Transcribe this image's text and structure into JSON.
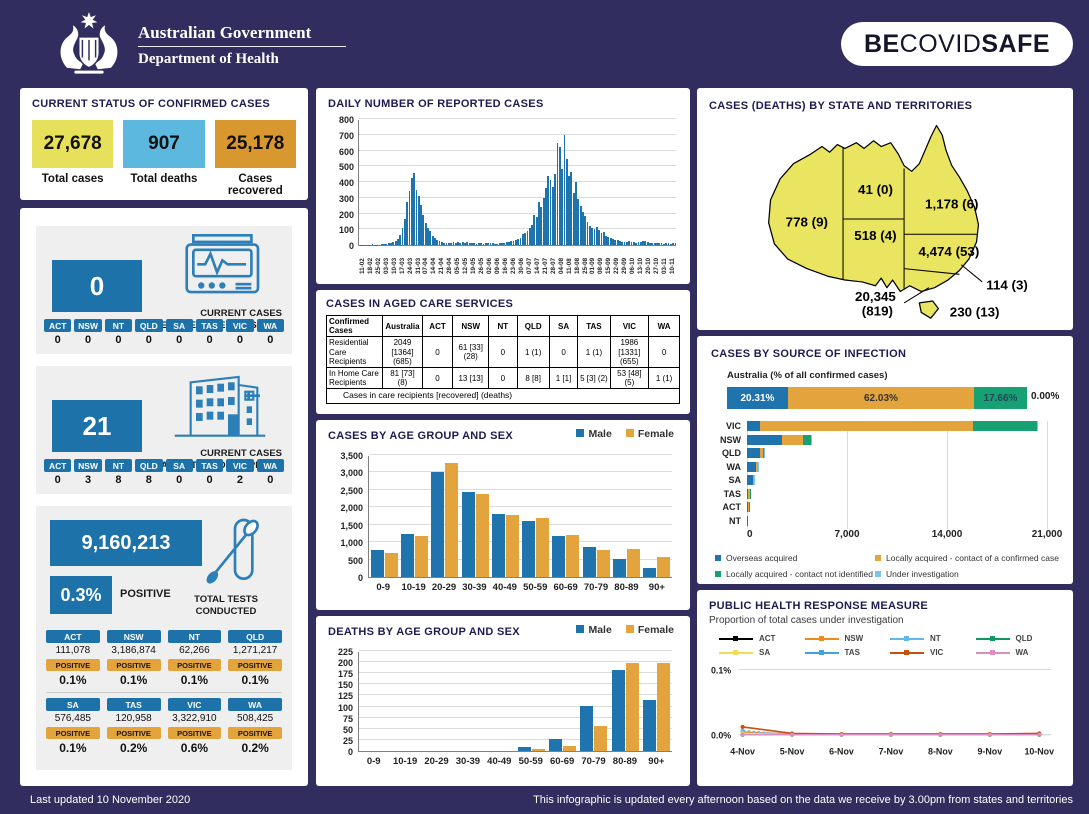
{
  "colors": {
    "navy_bg": "#312d5f",
    "panel_gray": "#efefef",
    "chip_blue": "#1d72aa",
    "chart_blue": "#1f74ad",
    "chart_orange": "#e3a33d",
    "status_yellow": "#e7e05a",
    "status_blue": "#5cb8de",
    "status_orange": "#d8982f",
    "green": "#17a172",
    "under_investigation_blue": "#7cc5e8",
    "map_yellow": "#eae560",
    "icon_blue": "#2d7fb8"
  },
  "header": {
    "gov_line1": "Australian Government",
    "gov_line2": "Department of Health",
    "badge_be": "BE ",
    "badge_covid": "COVID",
    "badge_safe": "SAFE"
  },
  "status": {
    "title": "CURRENT STATUS OF CONFIRMED CASES",
    "cards": [
      {
        "value": "27,678",
        "label": "Total cases",
        "color": "#e7e05a"
      },
      {
        "value": "907",
        "label": "Total deaths",
        "color": "#5cb8de"
      },
      {
        "value": "25,178",
        "label": "Cases recovered",
        "color": "#d8982f"
      }
    ]
  },
  "icu": {
    "value": "0",
    "label1": "CURRENT CASES",
    "label2": "INTENSIVE CARE UNITS (ICU)",
    "states": [
      {
        "code": "ACT",
        "value": "0"
      },
      {
        "code": "NSW",
        "value": "0"
      },
      {
        "code": "NT",
        "value": "0"
      },
      {
        "code": "QLD",
        "value": "0"
      },
      {
        "code": "SA",
        "value": "0"
      },
      {
        "code": "TAS",
        "value": "0"
      },
      {
        "code": "VIC",
        "value": "0"
      },
      {
        "code": "WA",
        "value": "0"
      }
    ]
  },
  "hospital": {
    "value": "21",
    "label1": "CURRENT CASES",
    "label2": "ADMITTED TO HOSPITALS",
    "states": [
      {
        "code": "ACT",
        "value": "0"
      },
      {
        "code": "NSW",
        "value": "3"
      },
      {
        "code": "NT",
        "value": "8"
      },
      {
        "code": "QLD",
        "value": "8"
      },
      {
        "code": "SA",
        "value": "0"
      },
      {
        "code": "TAS",
        "value": "0"
      },
      {
        "code": "VIC",
        "value": "2"
      },
      {
        "code": "WA",
        "value": "0"
      }
    ]
  },
  "tests": {
    "total": "9,160,213",
    "rate": "0.3%",
    "rate_label": "POSITIVE",
    "label1": "TOTAL TESTS",
    "label2": "CONDUCTED",
    "positive_chip": "POSITIVE",
    "states": [
      {
        "code": "ACT",
        "tests": "111,078",
        "positive": "0.1%"
      },
      {
        "code": "NSW",
        "tests": "3,186,874",
        "positive": "0.1%"
      },
      {
        "code": "NT",
        "tests": "62,266",
        "positive": "0.1%"
      },
      {
        "code": "QLD",
        "tests": "1,271,217",
        "positive": "0.1%"
      },
      {
        "code": "SA",
        "tests": "576,485",
        "positive": "0.1%"
      },
      {
        "code": "TAS",
        "tests": "120,958",
        "positive": "0.2%"
      },
      {
        "code": "VIC",
        "tests": "3,322,910",
        "positive": "0.6%"
      },
      {
        "code": "WA",
        "tests": "508,425",
        "positive": "0.2%"
      }
    ]
  },
  "aged_care": {
    "title": "CASES IN AGED CARE SERVICES",
    "headers": [
      "Confirmed Cases",
      "Australia",
      "ACT",
      "NSW",
      "NT",
      "QLD",
      "SA",
      "TAS",
      "VIC",
      "WA"
    ],
    "rows": [
      {
        "label": "Residential Care Recipients",
        "values": [
          "2049 [1364] (685)",
          "0",
          "61 [33] (28)",
          "0",
          "1 (1)",
          "0",
          "1 (1)",
          "1986 [1331] (655)",
          "0"
        ]
      },
      {
        "label": "In Home Care Recipients",
        "values": [
          "81 [73] (8)",
          "0",
          "13 [13]",
          "0",
          "8 [8]",
          "1 [1]",
          "5 [3] (2)",
          "53 [48] (5)",
          "1 (1)"
        ]
      }
    ],
    "footnote": "Cases in care recipients [recovered] (deaths)"
  },
  "map": {
    "title": "CASES (DEATHS) BY STATE AND TERRITORIES",
    "wa": "778 (9)",
    "nt": "41 (0)",
    "qld": "1,178 (6)",
    "sa": "518 (4)",
    "nsw": "4,474 (53)",
    "act": "114 (3)",
    "vic_line1": "20,345",
    "vic_line2": "(819)",
    "tas": "230 (13)"
  },
  "footer": {
    "left": "Last updated 10 November 2020",
    "right": "This infographic is updated every afternoon based on the data we receive by 3.00pm from states and territories"
  },
  "chart_data": [
    {
      "id": "daily_cases",
      "type": "bar",
      "title": "DAILY NUMBER OF REPORTED CASES",
      "ylim": [
        0,
        800
      ],
      "yticks": [
        0,
        100,
        200,
        300,
        400,
        500,
        600,
        700,
        800
      ],
      "x_tick_labels": [
        "11-02",
        "18-02",
        "25-02",
        "03-03",
        "10-03",
        "17-03",
        "24-03",
        "31-03",
        "07-04",
        "14-04",
        "21-04",
        "28-04",
        "05-05",
        "12-05",
        "19-05",
        "26-05",
        "02-06",
        "09-06",
        "16-06",
        "23-06",
        "30-06",
        "07-07",
        "14-07",
        "21-07",
        "28-07",
        "04-08",
        "11-08",
        "18-08",
        "25-08",
        "01-09",
        "08-09",
        "15-09",
        "22-09",
        "29-09",
        "06-10",
        "13-10",
        "20-10",
        "27-10",
        "03-11",
        "10-11"
      ],
      "values": [
        3,
        1,
        0,
        2,
        0,
        5,
        2,
        1,
        3,
        4,
        6,
        8,
        10,
        12,
        18,
        25,
        40,
        65,
        110,
        165,
        270,
        340,
        425,
        460,
        350,
        310,
        255,
        190,
        140,
        105,
        90,
        55,
        45,
        35,
        28,
        18,
        12,
        15,
        10,
        14,
        18,
        12,
        20,
        15,
        18,
        14,
        20,
        12,
        10,
        12,
        8,
        10,
        12,
        8,
        12,
        14,
        10,
        12,
        8,
        6,
        12,
        10,
        14,
        18,
        22,
        28,
        25,
        32,
        38,
        45,
        70,
        75,
        90,
        105,
        130,
        190,
        175,
        270,
        240,
        300,
        360,
        440,
        410,
        370,
        450,
        650,
        625,
        480,
        698,
        545,
        440,
        465,
        330,
        400,
        290,
        250,
        210,
        185,
        145,
        120,
        110,
        100,
        115,
        95,
        75,
        85,
        60,
        50,
        45,
        40,
        35,
        30,
        28,
        22,
        20,
        18,
        25,
        20,
        18,
        15,
        22,
        18,
        28,
        25,
        18,
        12,
        15,
        10,
        12,
        14,
        10,
        8,
        10,
        12,
        8,
        10,
        12
      ],
      "bar_color": "#1f74ad"
    },
    {
      "id": "cases_by_age_sex",
      "type": "bar",
      "title": "CASES BY AGE GROUP AND SEX",
      "categories": [
        "0-9",
        "10-19",
        "20-29",
        "30-39",
        "40-49",
        "50-59",
        "60-69",
        "70-79",
        "80-89",
        "90+"
      ],
      "series": [
        {
          "name": "Male",
          "color": "#1f74ad",
          "values": [
            780,
            1220,
            3000,
            2440,
            1800,
            1620,
            1170,
            860,
            520,
            260
          ]
        },
        {
          "name": "Female",
          "color": "#e3a33d",
          "values": [
            700,
            1170,
            3280,
            2390,
            1770,
            1690,
            1200,
            780,
            810,
            570
          ]
        }
      ],
      "ylim": [
        0,
        3500
      ],
      "yticks": [
        0,
        500,
        1000,
        1500,
        2000,
        2500,
        3000,
        3500
      ],
      "ytick_labels": [
        "0",
        "500",
        "1,000",
        "1,500",
        "2,000",
        "2,500",
        "3,000",
        "3,500"
      ],
      "legend_position": "top-right"
    },
    {
      "id": "deaths_by_age_sex",
      "type": "bar",
      "title": "DEATHS BY AGE GROUP AND SEX",
      "categories": [
        "0-9",
        "10-19",
        "20-29",
        "30-39",
        "40-49",
        "50-59",
        "60-69",
        "70-79",
        "80-89",
        "90+"
      ],
      "series": [
        {
          "name": "Male",
          "color": "#1f74ad",
          "values": [
            0,
            0,
            0,
            0,
            0,
            10,
            26,
            101,
            183,
            114
          ]
        },
        {
          "name": "Female",
          "color": "#e3a33d",
          "values": [
            0,
            0,
            0,
            0,
            0,
            5,
            12,
            57,
            197,
            199
          ]
        }
      ],
      "ylim": [
        0,
        225
      ],
      "yticks": [
        0,
        25,
        50,
        75,
        100,
        125,
        150,
        175,
        200,
        225
      ],
      "ytick_labels": [
        "0",
        "25",
        "50",
        "75",
        "100",
        "125",
        "150",
        "175",
        "200",
        "225"
      ],
      "legend_position": "top-right"
    },
    {
      "id": "source_of_infection",
      "type": "stacked-barh",
      "title": "CASES BY SOURCE OF INFECTION",
      "australia_label": "Australia (% of all confirmed cases)",
      "australia_segments": [
        {
          "label": "20.31%",
          "value": 20.31,
          "color": "#1f74ad",
          "text": "#ffffff"
        },
        {
          "label": "62.03%",
          "value": 62.03,
          "color": "#e3a33d",
          "text": "#333333"
        },
        {
          "label": "17.66%",
          "value": 17.66,
          "color": "#17a172",
          "text": "#23445a"
        },
        {
          "label": "0.00%",
          "value": 0,
          "color": "#7cc5e8",
          "text": "#1c1c1c"
        }
      ],
      "categories": [
        "VIC",
        "NSW",
        "QLD",
        "WA",
        "SA",
        "TAS",
        "ACT",
        "NT"
      ],
      "series": [
        {
          "name": "Overseas acquired",
          "color": "#1f74ad",
          "values": [
            900,
            2450,
            930,
            650,
            400,
            70,
            82,
            41
          ]
        },
        {
          "name": "Locally acquired - contact of a confirmed case",
          "color": "#e3a33d",
          "values": [
            14900,
            1450,
            200,
            100,
            100,
            150,
            29,
            0
          ]
        },
        {
          "name": "Locally acquired - contact not identified",
          "color": "#17a172",
          "values": [
            4500,
            560,
            45,
            25,
            17,
            10,
            3,
            0
          ]
        },
        {
          "name": "Under investigation",
          "color": "#7cc5e8",
          "values": [
            45,
            14,
            3,
            3,
            1,
            0,
            0,
            0
          ]
        }
      ],
      "xlim": [
        0,
        21000
      ],
      "xticks": [
        0,
        7000,
        14000,
        21000
      ],
      "xtick_labels": [
        "0",
        "7,000",
        "14,000",
        "21,000"
      ]
    },
    {
      "id": "response_measure",
      "type": "line",
      "title": "PUBLIC HEALTH RESPONSE MEASURE",
      "subtitle": "Proportion of total cases under investigation",
      "x": [
        "4-Nov",
        "5-Nov",
        "6-Nov",
        "7-Nov",
        "8-Nov",
        "9-Nov",
        "10-Nov"
      ],
      "ylim": [
        0,
        0.1
      ],
      "ytick_labels": [
        "0.1%",
        "0.0%"
      ],
      "series": [
        {
          "name": "ACT",
          "color": "#000000",
          "dash": false,
          "values": [
            0,
            0,
            0,
            0,
            0,
            0,
            0
          ]
        },
        {
          "name": "NSW",
          "color": "#ef8a1d",
          "dash": false,
          "values": [
            0.004,
            0.001,
            0.001,
            0.001,
            0.001,
            0.001,
            0.001
          ]
        },
        {
          "name": "NT",
          "color": "#62b7e6",
          "dash": true,
          "values": [
            0.006,
            0,
            0,
            0,
            0,
            0,
            0
          ]
        },
        {
          "name": "QLD",
          "color": "#0f9960",
          "dash": false,
          "values": [
            0,
            0,
            0,
            0,
            0,
            0,
            0
          ]
        },
        {
          "name": "SA",
          "color": "#eee04e",
          "dash": false,
          "values": [
            0.002,
            0,
            0,
            0,
            0,
            0,
            0
          ]
        },
        {
          "name": "TAS",
          "color": "#41a3dc",
          "dash": false,
          "values": [
            0,
            0,
            0,
            0,
            0,
            0,
            0
          ]
        },
        {
          "name": "VIC",
          "color": "#c94f10",
          "dash": false,
          "values": [
            0.012,
            0.002,
            0.001,
            0.001,
            0.001,
            0.001,
            0.002
          ]
        },
        {
          "name": "WA",
          "color": "#da8ec4",
          "dash": false,
          "values": [
            0,
            0,
            0,
            0,
            0,
            0,
            0
          ]
        }
      ]
    }
  ]
}
